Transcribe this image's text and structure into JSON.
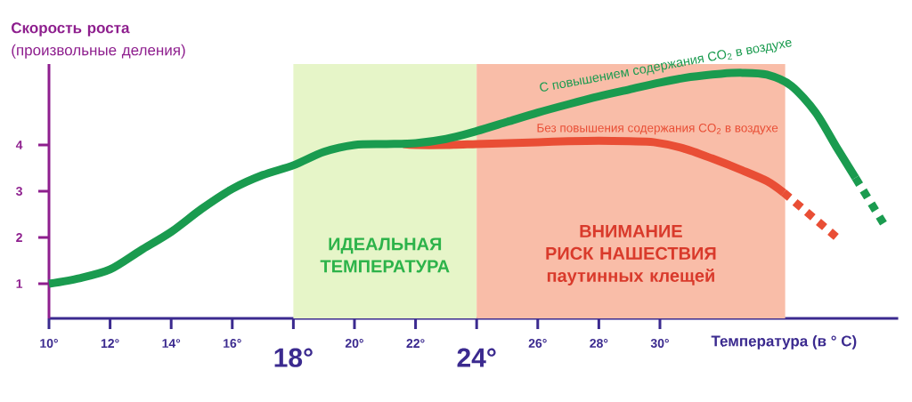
{
  "chart_data": {
    "type": "line",
    "xlabel": "Температура (в ° С)",
    "ylabel": "**Скорость роста**\n(произвольные деления)",
    "xlim": [
      10,
      37.8
    ],
    "ylim": [
      0.25,
      5.75
    ],
    "xticks": [
      {
        "value": 10,
        "label": "10°"
      },
      {
        "value": 12,
        "label": "12°"
      },
      {
        "value": 14,
        "label": "14°"
      },
      {
        "value": 16,
        "label": "16°"
      },
      {
        "value": 18,
        "label": null
      },
      {
        "value": 20,
        "label": "20°"
      },
      {
        "value": 22,
        "label": "22°"
      },
      {
        "value": 24,
        "label": null
      },
      {
        "value": 26,
        "label": "26°"
      },
      {
        "value": 28,
        "label": "28°"
      },
      {
        "value": 30,
        "label": "30°"
      }
    ],
    "yticks": [
      1,
      2,
      3,
      4
    ],
    "line_style": "solid",
    "series": [
      {
        "name": "Без повышения содержания CO$_{2}$ в воздухе",
        "color": "#e94e35",
        "x": [
          21.6,
          22,
          23,
          24,
          25,
          26,
          27,
          28,
          29,
          29.8,
          30.75,
          31.7,
          32.7,
          33.5,
          34.05
        ],
        "values": [
          4.02,
          4.0,
          4.0,
          4.02,
          4.04,
          4.06,
          4.08,
          4.09,
          4.08,
          4.06,
          3.93,
          3.71,
          3.45,
          3.22,
          2.97
        ]
      },
      {
        "color": "#e94e35",
        "line_style": "dotted",
        "x": [
          34.05,
          35.9
        ],
        "values": [
          2.97,
          1.94
        ]
      },
      {
        "name": "С повышением содержания CO$_{2}$ в воздухе",
        "color": "#1a9b4f",
        "x": [
          10,
          11,
          12,
          13,
          14,
          15,
          16,
          17,
          18,
          19,
          20,
          21,
          22,
          23,
          24,
          25,
          26,
          27,
          28,
          29,
          30,
          31,
          32,
          32.7,
          33.5,
          34.3,
          35.1,
          35.8,
          36.4
        ],
        "values": [
          1,
          1.12,
          1.31,
          1.72,
          2.12,
          2.62,
          3.05,
          3.35,
          3.56,
          3.85,
          4.0,
          4.02,
          4.04,
          4.13,
          4.3,
          4.5,
          4.7,
          4.88,
          5.05,
          5.2,
          5.35,
          5.47,
          5.54,
          5.56,
          5.52,
          5.28,
          4.7,
          3.93,
          3.29
        ]
      },
      {
        "color": "#1a9b4f",
        "line_style": "dotted",
        "x": [
          36.4,
          37.35
        ],
        "values": [
          3.29,
          2.27
        ]
      }
    ],
    "bands": [
      {
        "axis": "x",
        "from": 18,
        "to": 24,
        "label": "ИДЕАЛЬНАЯ\nТЕМПЕРАТУРА",
        "color": "#e6f5c8"
      },
      {
        "axis": "x",
        "from": 24,
        "to": 34.1,
        "label": "ВНИМАНИЕ\nРИСК НАШЕСТВИЯ\nпаутинных клещей",
        "color": "#f9bda8"
      }
    ],
    "annotations": [
      {
        "text": "18°",
        "x": 18,
        "y": 0.25
      },
      {
        "text": "24°",
        "x": 24,
        "y": 0.25
      }
    ]
  }
}
